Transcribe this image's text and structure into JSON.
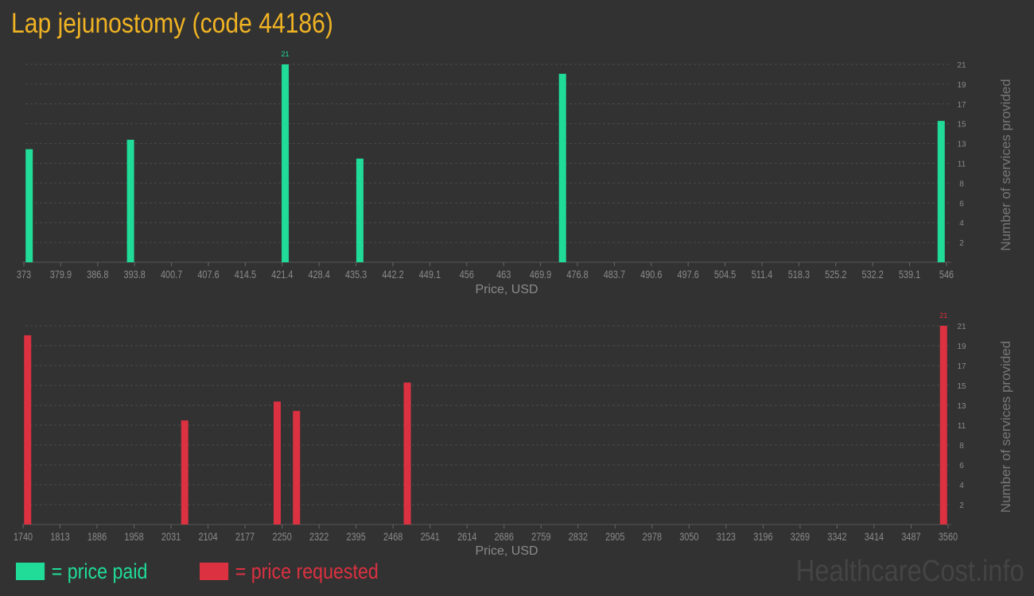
{
  "title": "Lap jejunostomy (code 44186)",
  "legend": {
    "paid": "= price paid",
    "requested": "= price requested"
  },
  "watermark": "HealthcareCost.info",
  "colors": {
    "paid": "#20dc98",
    "requested": "#dc3141",
    "title": "#f0b323",
    "background": "#323232"
  },
  "chart_data": [
    {
      "type": "bar",
      "xlabel": "Price, USD",
      "ylabel": "Number of services provided",
      "xlim": [
        373,
        546
      ],
      "ylim": [
        0,
        21
      ],
      "grid": true,
      "x_tick_labels": [
        "373",
        "379.9",
        "386.8",
        "393.8",
        "400.7",
        "407.6",
        "414.5",
        "421.4",
        "428.4",
        "435.3",
        "442.2",
        "449.1",
        "456",
        "463",
        "469.9",
        "476.8",
        "483.7",
        "490.6",
        "497.6",
        "504.5",
        "511.4",
        "518.3",
        "525.2",
        "532.2",
        "539.1",
        "546"
      ],
      "y_tick_labels": [
        "2",
        "4",
        "6",
        "8",
        "11",
        "13",
        "15",
        "17",
        "19",
        "21"
      ],
      "series": [
        {
          "name": "price paid",
          "x": [
            374,
            393,
            422,
            436,
            474,
            545
          ],
          "values": [
            12,
            13,
            21,
            11,
            20,
            15
          ]
        }
      ],
      "data_labels": [
        {
          "x": 422,
          "text": "21"
        }
      ]
    },
    {
      "type": "bar",
      "xlabel": "Price, USD",
      "ylabel": "Number of services provided",
      "xlim": [
        1740,
        3560
      ],
      "ylim": [
        0,
        21
      ],
      "grid": true,
      "x_tick_labels": [
        "1740",
        "1813",
        "1886",
        "1958",
        "2031",
        "2104",
        "2177",
        "2250",
        "2322",
        "2395",
        "2468",
        "2541",
        "2614",
        "2686",
        "2759",
        "2832",
        "2905",
        "2978",
        "3050",
        "3123",
        "3196",
        "3269",
        "3342",
        "3414",
        "3487",
        "3560"
      ],
      "y_tick_labels": [
        "2",
        "4",
        "6",
        "8",
        "11",
        "13",
        "15",
        "17",
        "19",
        "21"
      ],
      "series": [
        {
          "name": "price requested",
          "x": [
            1749,
            2058,
            2240,
            2278,
            2496,
            3551
          ],
          "values": [
            20,
            11,
            13,
            12,
            15,
            21
          ]
        }
      ],
      "data_labels": [
        {
          "x": 3551,
          "text": "21"
        }
      ]
    }
  ]
}
